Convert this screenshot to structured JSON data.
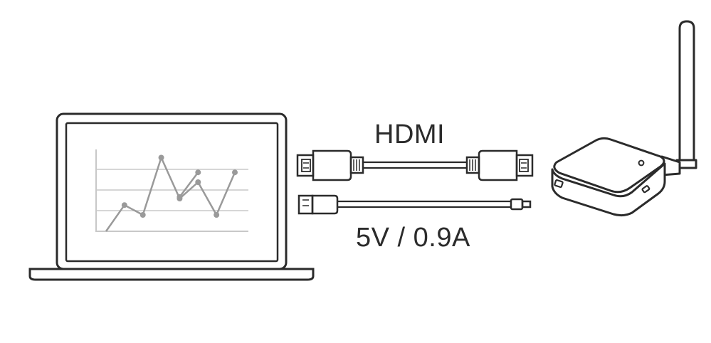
{
  "labels": {
    "hdmi": "HDMI",
    "power": "5V / 0.9A"
  },
  "screen_chart": {
    "type": "line",
    "series": [
      {
        "values": [
          0,
          1.6,
          1.0,
          4.5,
          2.0,
          3.0,
          1.0,
          3.6
        ]
      },
      {
        "values": [
          null,
          null,
          null,
          null,
          2.1,
          3.6,
          null,
          null
        ]
      }
    ],
    "ylim": [
      0,
      5
    ],
    "grid": true
  },
  "colors": {
    "outline": "#2b2b2b",
    "chart": "#9a9a9a",
    "grid": "#c8c8c8"
  },
  "icons": {
    "laptop": "laptop-icon",
    "receiver": "wireless-display-receiver-icon",
    "hdmi_plug": "hdmi-plug-icon",
    "usb_plug": "usb-a-plug-icon",
    "micro_usb_plug": "micro-usb-plug-icon",
    "antenna": "antenna-icon"
  }
}
